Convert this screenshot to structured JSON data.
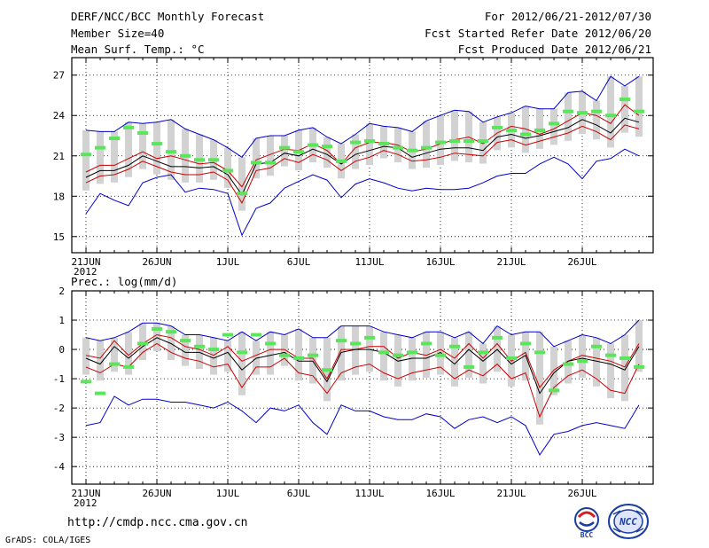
{
  "header": {
    "title": "DERF/NCC/BCC Monthly Forecast",
    "member_size": "Member Size=40",
    "variable": "Mean Surf. Temp.: °C",
    "period": "For 2012/06/21-2012/07/30",
    "refer_date": "Fcst Started Refer Date 2012/06/20",
    "produced_date": "Fcst Produced Date 2012/06/21"
  },
  "footer": {
    "url": "http://cmdp.ncc.cma.gov.cn",
    "credit": "GrADS: COLA/IGES",
    "logo_bcc_text": "BCC",
    "logo_ncc_text": "NCC"
  },
  "colors": {
    "envelope": "#0000cc",
    "spread": "#cc0000",
    "mean": "#000000",
    "box": "#d2d2d2",
    "climatology": "#5ae65a"
  },
  "chart_data": [
    {
      "type": "line",
      "title": "Mean Surf. Temp.: °C",
      "x_tick_labels": [
        "21JUN",
        "26JUN",
        "1JUL",
        "6JUL",
        "11JUL",
        "16JUL",
        "21JUL",
        "26JUL"
      ],
      "year_label": "2012",
      "ylim": [
        13.8,
        28.3
      ],
      "yticks": [
        15,
        18,
        21,
        24,
        27
      ],
      "series": [
        {
          "name": "max",
          "values": [
            16.7,
            18.2,
            17.7,
            17.3,
            19,
            19.4,
            19.6,
            18.3,
            18.6,
            18.5,
            18.2,
            15.1,
            17.1,
            17.5,
            18.6,
            19.1,
            19.6,
            19.2,
            17.9,
            18.9,
            19.3,
            19,
            18.6,
            18.4,
            18.6,
            18.5,
            18.5,
            18.6,
            19,
            19.5,
            19.7,
            19.7,
            20.4,
            20.9,
            20.4,
            19.3,
            20.6,
            20.8,
            21.5,
            21
          ]
        },
        {
          "name": "mean_plus",
          "values": [
            22.9,
            22.8,
            22.8,
            23.5,
            23.4,
            23.5,
            23.7,
            23,
            22.6,
            22.2,
            21.6,
            20.9,
            22.3,
            22.5,
            22.5,
            22.9,
            23.1,
            22.4,
            21.9,
            22.6,
            23.4,
            23.2,
            23.1,
            22.8,
            23.6,
            24,
            24.4,
            24.3,
            23.5,
            23.9,
            24.2,
            24.7,
            24.5,
            24.5,
            25.7,
            25.8,
            25.1,
            26.9,
            26.2,
            26.9
          ]
        },
        {
          "name": "upper",
          "values": [
            19.8,
            20.3,
            20.3,
            20.8,
            21.3,
            20.8,
            21,
            20.7,
            20.4,
            20.5,
            19.9,
            18.7,
            20.7,
            21.1,
            21.5,
            21.4,
            21.9,
            21.4,
            20.4,
            21.6,
            22,
            22,
            21.8,
            21.3,
            21.5,
            21.9,
            22.2,
            22.4,
            21.9,
            22.7,
            23.2,
            23,
            22.6,
            23,
            23.6,
            24.2,
            24,
            23.4,
            24.8,
            24
          ]
        },
        {
          "name": "mean",
          "values": [
            19.4,
            19.9,
            19.9,
            20.3,
            21,
            20.6,
            20.2,
            20.2,
            20.1,
            20.2,
            19.6,
            18.1,
            20.4,
            20.5,
            21.2,
            21,
            21.5,
            21.1,
            20.4,
            21.1,
            21.4,
            21.7,
            21.6,
            20.9,
            21.2,
            21.5,
            21.6,
            21.6,
            21.4,
            22.4,
            22.6,
            22.3,
            22.5,
            22.8,
            23.1,
            23.7,
            23.3,
            22.7,
            23.8,
            23.5
          ]
        },
        {
          "name": "lower",
          "values": [
            19,
            19.5,
            19.6,
            20,
            20.6,
            20.2,
            19.8,
            19.6,
            19.6,
            19.8,
            19.2,
            17.5,
            19.9,
            20.1,
            20.8,
            20.5,
            21.1,
            20.7,
            19.9,
            20.6,
            20.9,
            21.4,
            21.1,
            20.6,
            20.7,
            20.9,
            21.2,
            21.1,
            21,
            22,
            22.2,
            21.8,
            22.1,
            22.4,
            22.7,
            23.2,
            22.8,
            22.2,
            23.3,
            23
          ]
        },
        {
          "name": "mean_minus",
          "values": [
            19,
            19.5,
            19.6,
            20,
            20.6,
            20.2,
            19.8,
            19.6,
            19.6,
            19.8,
            19.2,
            17.5,
            19.9,
            20.1,
            20.8,
            20.5,
            21.1,
            20.7,
            19.9,
            20.6,
            20.9,
            21.4,
            21.1,
            20.6,
            20.7,
            20.9,
            21.2,
            21.1,
            21,
            22,
            22.2,
            21.8,
            22.1,
            22.4,
            22.7,
            23.2,
            22.8,
            22.2,
            23.3,
            23
          ]
        },
        {
          "name": "climatology",
          "values": [
            21.1,
            21.6,
            22.3,
            23.1,
            22.7,
            21.9,
            21.3,
            21,
            20.7,
            20.7,
            19.9,
            18.2,
            20.5,
            20.5,
            21.6,
            21.3,
            21.8,
            21.7,
            20.6,
            22,
            22.1,
            21.9,
            21.6,
            21.4,
            21.6,
            22,
            22.1,
            22.1,
            22.1,
            23.1,
            22.9,
            22.6,
            22.9,
            23.4,
            24.3,
            24.2,
            24.3,
            24,
            25.2,
            24.3
          ]
        }
      ]
    },
    {
      "type": "line",
      "title": "Prec.: log(mm/d)",
      "x_tick_labels": [
        "21JUN",
        "26JUN",
        "1JUL",
        "6JUL",
        "11JUL",
        "16JUL",
        "21JUL",
        "26JUL"
      ],
      "year_label": "2012",
      "ylim": [
        -4.6,
        2
      ],
      "yticks": [
        2,
        1,
        0,
        -1,
        -2,
        -3,
        -4
      ],
      "series": [
        {
          "name": "max",
          "values": [
            -2.6,
            -2.5,
            -1.6,
            -1.9,
            -1.7,
            -1.7,
            -1.8,
            -1.8,
            -1.9,
            -2,
            -1.8,
            -2.1,
            -2.5,
            -2,
            -2.1,
            -1.9,
            -2.5,
            -2.9,
            -1.9,
            -2.1,
            -2.1,
            -2.3,
            -2.4,
            -2.4,
            -2.2,
            -2.3,
            -2.7,
            -2.4,
            -2.3,
            -2.5,
            -2.3,
            -2.6,
            -3.6,
            -2.9,
            -2.8,
            -2.6,
            -2.5,
            -2.6,
            -2.7,
            -1.9
          ]
        },
        {
          "name": "mean_plus",
          "values": [
            0.4,
            0.3,
            0.4,
            0.6,
            0.9,
            0.9,
            0.8,
            0.5,
            0.5,
            0.4,
            0.3,
            0.6,
            0.3,
            0.6,
            0.5,
            0.7,
            0.4,
            0.4,
            0.8,
            0.8,
            0.8,
            0.6,
            0.5,
            0.4,
            0.6,
            0.6,
            0.4,
            0.6,
            0.2,
            0.8,
            0.5,
            0.6,
            0.6,
            0.1,
            0.3,
            0.5,
            0.4,
            0.2,
            0.5,
            1
          ]
        },
        {
          "name": "upper",
          "values": [
            -0.2,
            -0.3,
            0.3,
            -0.2,
            0.2,
            0.5,
            0.4,
            0.1,
            0,
            -0.2,
            0.1,
            -0.4,
            -0.2,
            0,
            0,
            -0.3,
            -0.3,
            -1,
            0,
            0,
            0.1,
            0.1,
            -0.3,
            -0.1,
            -0.2,
            0,
            -0.3,
            0.2,
            -0.3,
            0.2,
            -0.4,
            -0.1,
            -1.3,
            -0.7,
            -0.4,
            -0.2,
            -0.3,
            -0.4,
            -0.6,
            0.2
          ]
        },
        {
          "name": "mean",
          "values": [
            -0.3,
            -0.5,
            0.1,
            -0.3,
            0.1,
            0.4,
            0.2,
            -0.1,
            -0.1,
            -0.3,
            -0.1,
            -0.7,
            -0.3,
            -0.2,
            -0.1,
            -0.4,
            -0.4,
            -1.1,
            -0.1,
            0,
            0,
            -0.1,
            -0.4,
            -0.3,
            -0.3,
            -0.1,
            -0.5,
            0,
            -0.4,
            0,
            -0.5,
            -0.2,
            -1.5,
            -0.8,
            -0.4,
            -0.3,
            -0.4,
            -0.5,
            -0.7,
            0.1
          ]
        },
        {
          "name": "lower",
          "values": [
            -0.6,
            -0.8,
            -0.5,
            -0.6,
            -0.1,
            0.2,
            -0.1,
            -0.3,
            -0.4,
            -0.6,
            -0.5,
            -1.3,
            -0.6,
            -0.6,
            -0.3,
            -0.8,
            -0.9,
            -1.5,
            -0.8,
            -0.6,
            -0.5,
            -0.8,
            -1,
            -0.8,
            -0.7,
            -0.6,
            -1,
            -0.7,
            -0.9,
            -0.5,
            -1,
            -0.8,
            -2.3,
            -1.3,
            -0.9,
            -0.7,
            -1,
            -1.4,
            -1.5,
            -0.5
          ]
        },
        {
          "name": "mean_minus",
          "values": [
            -0.6,
            -0.8,
            -0.5,
            -0.6,
            -0.1,
            0.2,
            -0.1,
            -0.3,
            -0.4,
            -0.6,
            -0.5,
            -1.3,
            -0.6,
            -0.6,
            -0.3,
            -0.8,
            -0.9,
            -1.5,
            -0.8,
            -0.6,
            -0.5,
            -0.8,
            -1,
            -0.8,
            -0.7,
            -0.6,
            -1,
            -0.7,
            -0.9,
            -0.5,
            -1,
            -0.8,
            -2.3,
            -1.3,
            -0.9,
            -0.7,
            -1,
            -1.4,
            -1.5,
            -0.5
          ]
        },
        {
          "name": "climatology",
          "values": [
            -1.1,
            -1.5,
            -0.5,
            -0.6,
            0.2,
            0.7,
            0.6,
            0.3,
            0.1,
            0,
            0.5,
            -0.1,
            0.5,
            0.2,
            -0.2,
            -0.3,
            -0.2,
            -0.7,
            0.3,
            0.2,
            0.4,
            -0.1,
            -0.2,
            -0.1,
            0.2,
            -0.2,
            0.1,
            -0.6,
            -0.1,
            0.4,
            -0.3,
            0.2,
            -0.1,
            -1.4,
            -0.5,
            -0.4,
            0.1,
            -0.2,
            -0.3,
            -0.6
          ]
        }
      ]
    }
  ]
}
